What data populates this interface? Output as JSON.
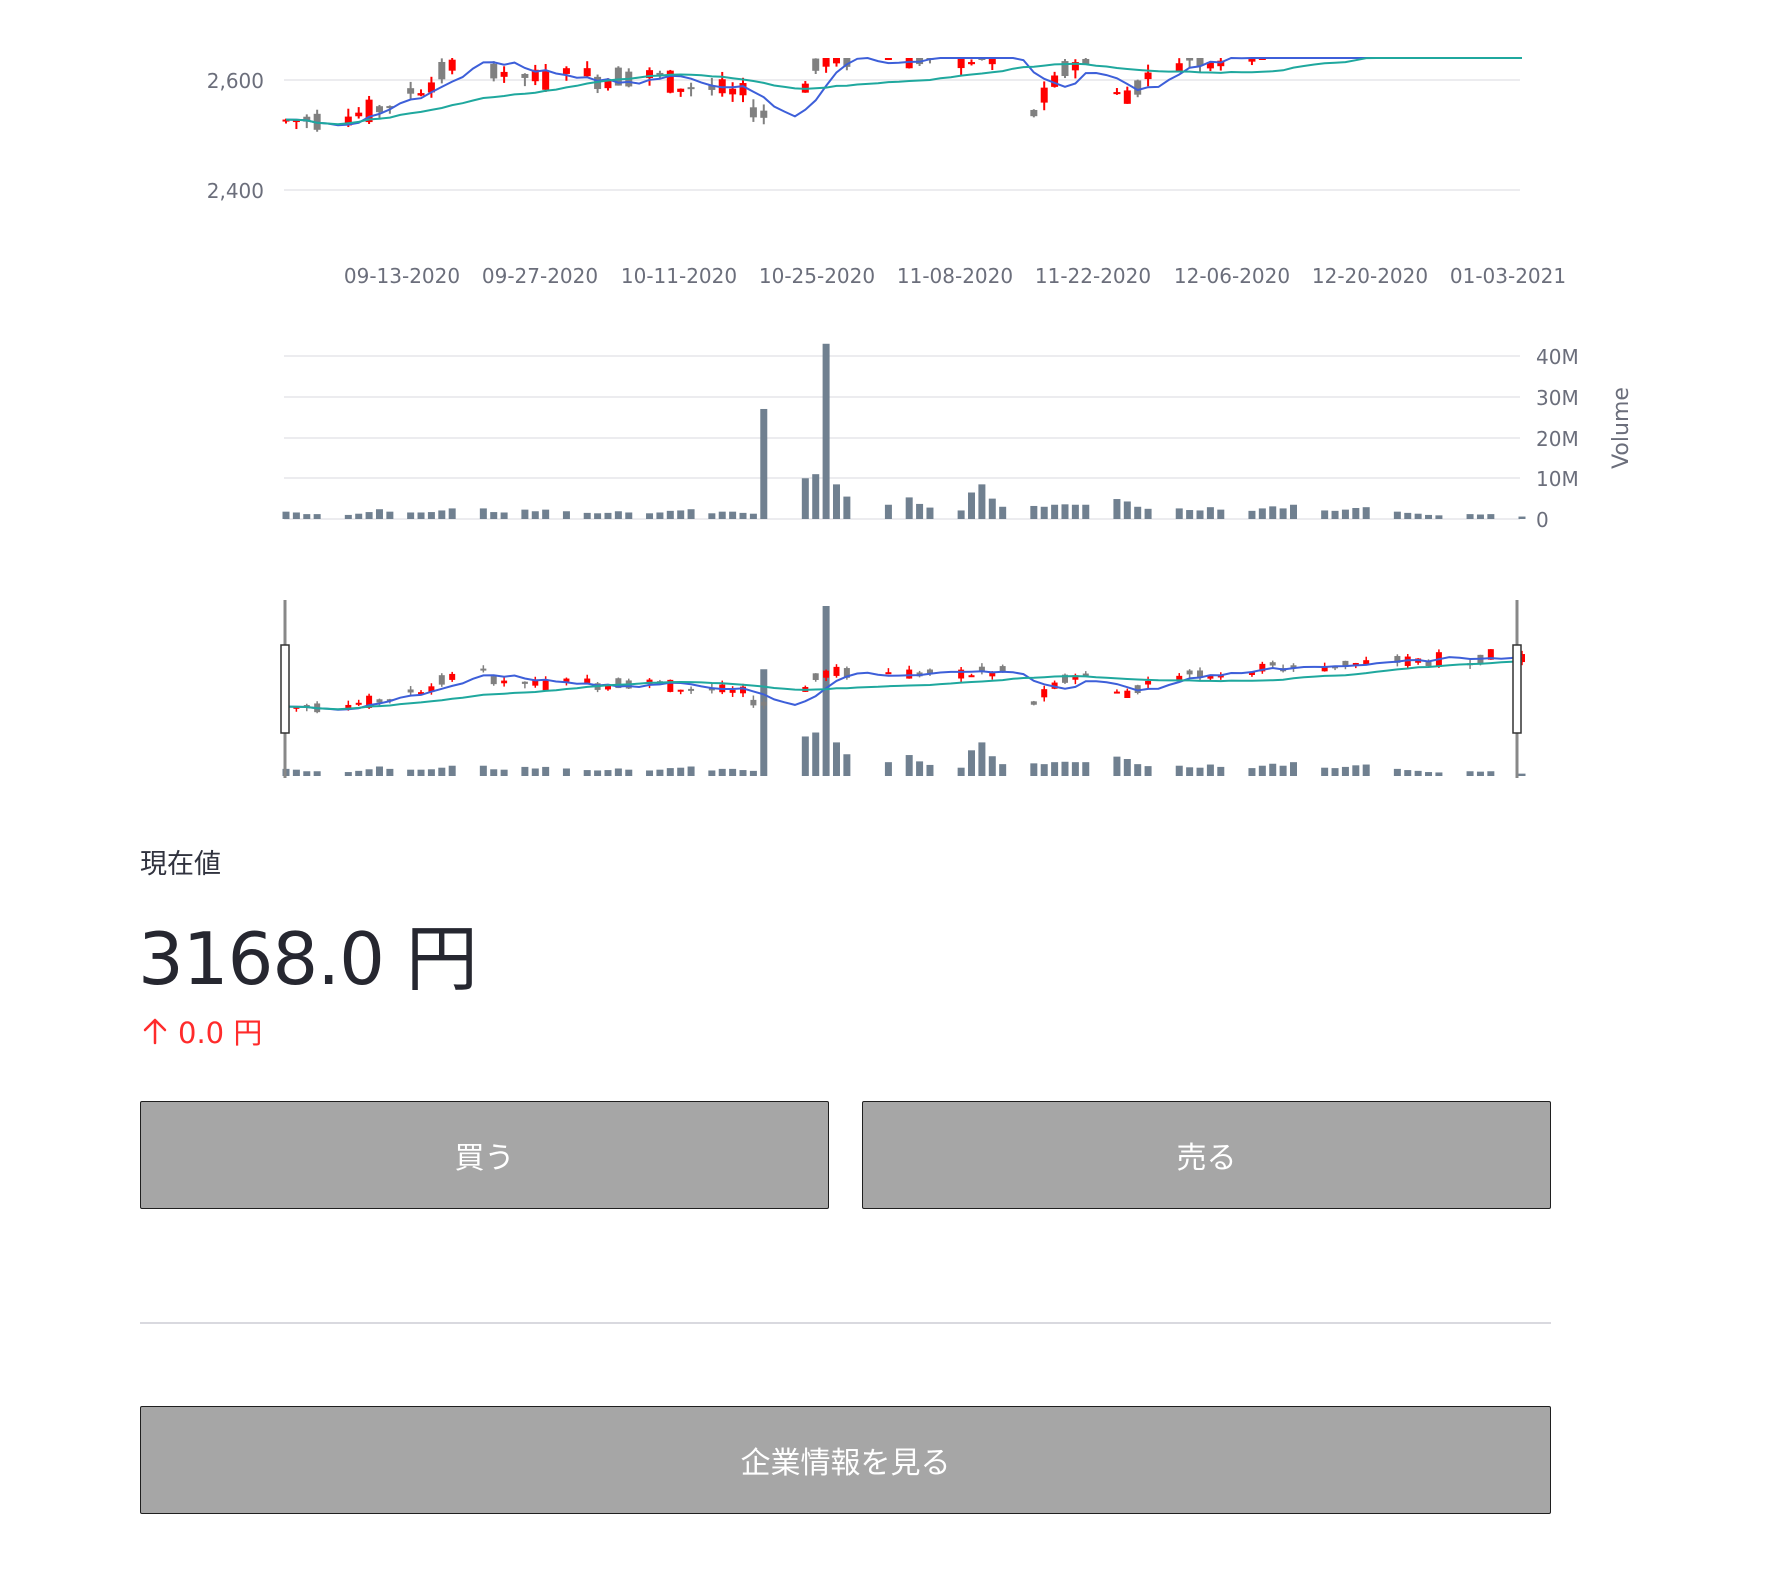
{
  "metric": {
    "label": "現在値",
    "value": "3168.0 円",
    "delta": "0.0 円",
    "delta_direction": "up",
    "delta_color": "#ff2b2b"
  },
  "buttons": {
    "buy": "買う",
    "sell": "売る",
    "company_info": "企業情報を見る"
  },
  "colors": {
    "up_candle": "#ff0000",
    "down_candle": "#808080",
    "volume_bar": "#708090",
    "ma_short": "#3d5fd9",
    "ma_long": "#1fa89e",
    "grid": "#e6e6ea",
    "button_bg": "#a6a6a6"
  },
  "chart_data": [
    {
      "type": "candlestick",
      "title": "",
      "y_ticks": [
        "2,600",
        "2,400"
      ],
      "y_tick_values": [
        2600,
        2400
      ],
      "ylim": [
        2340,
        2640
      ],
      "x_ticks": [
        "09-13-2020",
        "09-27-2020",
        "10-11-2020",
        "10-25-2020",
        "11-08-2020",
        "11-22-2020",
        "12-06-2020",
        "12-20-2020",
        "01-03-2021"
      ],
      "legend": "none",
      "grid": "horizontal",
      "series": [
        "ohlc",
        "moving_average_short",
        "moving_average_long"
      ]
    },
    {
      "type": "bar",
      "ylabel": "Volume",
      "y_ticks": [
        "40M",
        "30M",
        "20M",
        "10M",
        "0"
      ],
      "y_tick_values": [
        40,
        30,
        20,
        10,
        0
      ],
      "ylim": [
        0,
        43
      ],
      "units": "millions of shares",
      "values": [
        1.8,
        1.6,
        1.2,
        1.2,
        0,
        0,
        1.0,
        1.3,
        1.7,
        2.4,
        1.8,
        0,
        1.6,
        1.6,
        1.7,
        2.1,
        2.6,
        0,
        0,
        2.6,
        1.7,
        1.6,
        0,
        2.3,
        1.9,
        2.3,
        0,
        1.9,
        0,
        1.5,
        1.4,
        1.5,
        1.9,
        1.6,
        0,
        1.4,
        1.6,
        2.0,
        2.1,
        2.4,
        0,
        1.4,
        1.8,
        1.8,
        1.5,
        1.3,
        27,
        0,
        0,
        0,
        10,
        11,
        43,
        8.5,
        5.5,
        0,
        0,
        0,
        3.5,
        0,
        5.3,
        3.7,
        2.8,
        0,
        0,
        2.1,
        6.5,
        8.5,
        5.0,
        3.0,
        0,
        0,
        3.2,
        3.0,
        3.5,
        3.6,
        3.5,
        3.5,
        0,
        0,
        4.9,
        4.3,
        3.0,
        2.5,
        0,
        0,
        2.6,
        2.2,
        2.1,
        2.9,
        2.3,
        0,
        0,
        2.0,
        2.6,
        3.1,
        2.6,
        3.5,
        0,
        0,
        2.1,
        2.0,
        2.3,
        2.7,
        2.9,
        0,
        0,
        1.8,
        1.5,
        1.3,
        1.0,
        0.9,
        0,
        0,
        1.2,
        1.1,
        1.2,
        0,
        0,
        0.6
      ]
    },
    {
      "type": "range_selector",
      "description_free": true
    }
  ]
}
